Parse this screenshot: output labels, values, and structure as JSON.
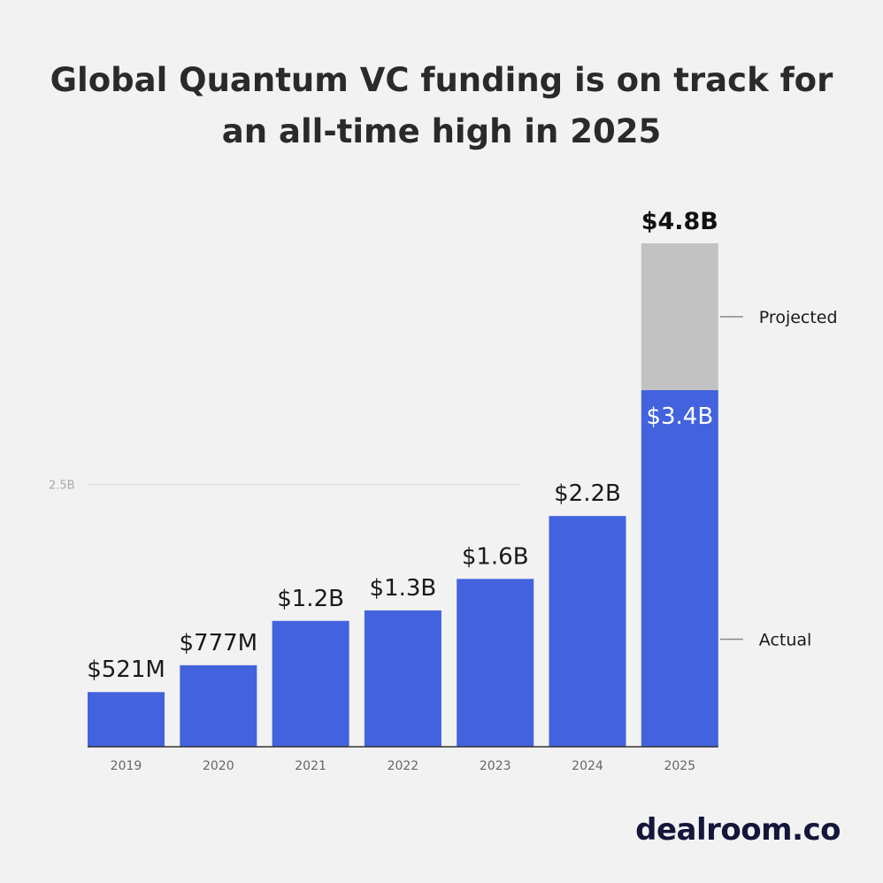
{
  "header": {
    "title_line1": "Global Quantum VC funding is on track for",
    "title_line2": "an all-time high in 2025"
  },
  "chart_data": {
    "type": "bar",
    "categories": [
      "2019",
      "2020",
      "2021",
      "2022",
      "2023",
      "2024",
      "2025"
    ],
    "series": [
      {
        "name": "Actual",
        "values": [
          0.521,
          0.777,
          1.2,
          1.3,
          1.6,
          2.2,
          3.4
        ]
      },
      {
        "name": "Projected",
        "values": [
          0,
          0,
          0,
          0,
          0,
          0,
          1.4
        ]
      }
    ],
    "value_labels": [
      "$521M",
      "$777M",
      "$1.2B",
      "$1.3B",
      "$1.6B",
      "$2.2B",
      "$3.4B"
    ],
    "total_label": "$4.8B",
    "y_ticks": [
      {
        "value": 2.5,
        "label": "2.5B"
      }
    ],
    "ylim": [
      0,
      4.8
    ],
    "grid": true,
    "legend": {
      "placement": "right",
      "items": [
        "Projected",
        "Actual"
      ]
    },
    "colors": {
      "actual": "#4263dd",
      "projected": "#c2c2c2",
      "gridline": "#e3e3e3",
      "baseline": "#333333"
    }
  },
  "footer": {
    "logo": "dealroom.co"
  }
}
